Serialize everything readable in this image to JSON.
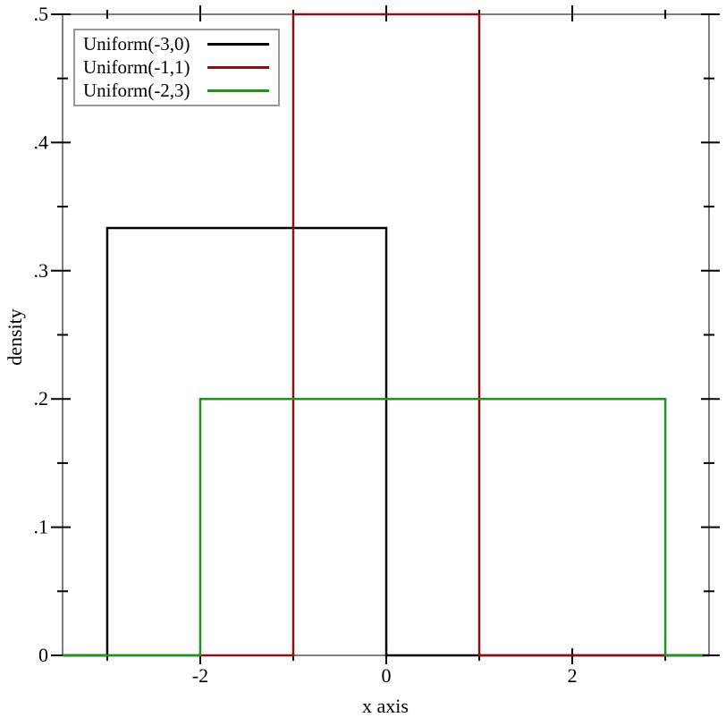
{
  "chart_data": {
    "type": "line",
    "subtype": "uniform-density-step",
    "title": "",
    "xlabel": "x axis",
    "ylabel": "density",
    "xlim": [
      -3.48,
      3.47
    ],
    "ylim": [
      0,
      0.5
    ],
    "grid": false,
    "frame_color": "#808080",
    "tick_color": "#000000",
    "x_axis": {
      "major_ticks": [
        {
          "value": -2,
          "label": "-2"
        },
        {
          "value": 0,
          "label": "0"
        },
        {
          "value": 2,
          "label": "2"
        }
      ],
      "minor_ticks": [
        -3,
        -1,
        1,
        3
      ]
    },
    "y_axis": {
      "major_ticks": [
        {
          "value": 0,
          "label": "0"
        },
        {
          "value": 0.1,
          "label": ".1"
        },
        {
          "value": 0.2,
          "label": ".2"
        },
        {
          "value": 0.3,
          "label": ".3"
        },
        {
          "value": 0.4,
          "label": ".4"
        },
        {
          "value": 0.5,
          "label": ".5"
        }
      ],
      "minor_ticks": [
        0.05,
        0.15,
        0.25,
        0.35,
        0.45
      ]
    },
    "series": [
      {
        "label": "Uniform(-3,0)",
        "color": "#000000",
        "support": [
          -3,
          0
        ],
        "density": 0.3333,
        "draw_range": [
          -3.48,
          3.47
        ]
      },
      {
        "label": "Uniform(-1,1)",
        "color": "#8B1212",
        "support": [
          -1,
          1
        ],
        "density": 0.5,
        "draw_range": [
          -3.48,
          3.4
        ]
      },
      {
        "label": "Uniform(-2,3)",
        "color": "#1E941E",
        "support": [
          -2,
          3
        ],
        "density": 0.2,
        "draw_range": [
          -3.48,
          3.4
        ]
      }
    ],
    "legend": {
      "position": "top-left",
      "border_color": "#999999",
      "background": "#ffffff"
    }
  }
}
